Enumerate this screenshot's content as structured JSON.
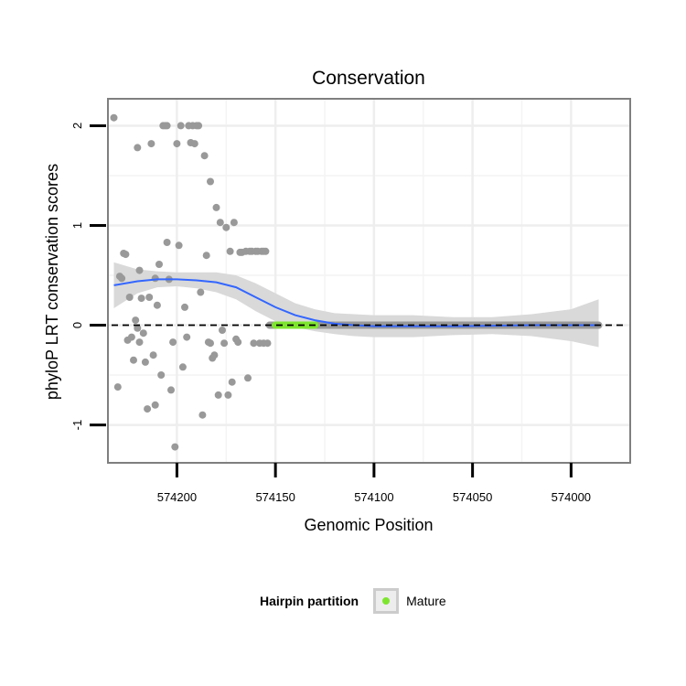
{
  "chart_data": {
    "type": "scatter",
    "title": "Conservation",
    "xlabel": "Genomic Position",
    "ylabel": "phyloP LRT conservation scores",
    "x_reversed": true,
    "xlim": [
      574235,
      573970
    ],
    "ylim": [
      -1.38,
      2.27
    ],
    "x_ticks": [
      574200,
      574150,
      574100,
      574050,
      574000
    ],
    "x_tick_labels": [
      "574200",
      "574150",
      "574100",
      "574050",
      "574000"
    ],
    "y_ticks": [
      -1,
      0,
      1,
      2
    ],
    "y_tick_labels": [
      "-1",
      "0",
      "1",
      "2"
    ],
    "reference_line_y": 0,
    "reference_line_style": "dashed",
    "point_color": "#999999",
    "points": [
      [
        574232,
        2.08
      ],
      [
        574230,
        -0.62
      ],
      [
        574229,
        0.49
      ],
      [
        574228,
        0.47
      ],
      [
        574227,
        0.72
      ],
      [
        574226,
        0.71
      ],
      [
        574225,
        -0.15
      ],
      [
        574224,
        0.28
      ],
      [
        574223,
        -0.12
      ],
      [
        574222,
        -0.35
      ],
      [
        574221,
        0.05
      ],
      [
        574220,
        1.78
      ],
      [
        574220,
        -0.03
      ],
      [
        574219,
        0.55
      ],
      [
        574219,
        -0.17
      ],
      [
        574218,
        0.27
      ],
      [
        574217,
        -0.08
      ],
      [
        574216,
        -0.37
      ],
      [
        574215,
        -0.84
      ],
      [
        574214,
        0.28
      ],
      [
        574213,
        1.82
      ],
      [
        574212,
        -0.3
      ],
      [
        574211,
        0.47
      ],
      [
        574211,
        -0.8
      ],
      [
        574210,
        0.2
      ],
      [
        574209,
        0.61
      ],
      [
        574208,
        -0.5
      ],
      [
        574207,
        2.0
      ],
      [
        574206,
        2.0
      ],
      [
        574205,
        0.83
      ],
      [
        574205,
        2.0
      ],
      [
        574204,
        0.46
      ],
      [
        574203,
        -0.65
      ],
      [
        574202,
        -0.17
      ],
      [
        574201,
        -1.22
      ],
      [
        574200,
        1.82
      ],
      [
        574199,
        0.8
      ],
      [
        574198,
        2.0
      ],
      [
        574197,
        -0.42
      ],
      [
        574196,
        0.18
      ],
      [
        574195,
        -0.12
      ],
      [
        574194,
        2.0
      ],
      [
        574193,
        1.83
      ],
      [
        574192,
        2.0
      ],
      [
        574191,
        1.82
      ],
      [
        574190,
        2.0
      ],
      [
        574189,
        2.0
      ],
      [
        574188,
        0.33
      ],
      [
        574187,
        -0.9
      ],
      [
        574186,
        1.7
      ],
      [
        574185,
        0.7
      ],
      [
        574184,
        -0.17
      ],
      [
        574183,
        1.44
      ],
      [
        574183,
        -0.18
      ],
      [
        574182,
        -0.33
      ],
      [
        574181,
        -0.3
      ],
      [
        574180,
        1.18
      ],
      [
        574179,
        -0.7
      ],
      [
        574178,
        1.03
      ],
      [
        574177,
        -0.05
      ],
      [
        574176,
        -0.18
      ],
      [
        574175,
        0.98
      ],
      [
        574174,
        -0.7
      ],
      [
        574173,
        0.74
      ],
      [
        574172,
        -0.57
      ],
      [
        574171,
        1.03
      ],
      [
        574170,
        -0.14
      ],
      [
        574169,
        -0.17
      ],
      [
        574168,
        0.73
      ],
      [
        574167,
        0.73
      ],
      [
        574165,
        0.74
      ],
      [
        574164,
        -0.53
      ],
      [
        574163,
        0.74
      ],
      [
        574162,
        0.74
      ],
      [
        574161,
        -0.18
      ],
      [
        574160,
        0.74
      ],
      [
        574159,
        0.74
      ],
      [
        574158,
        -0.18
      ],
      [
        574157,
        0.74
      ],
      [
        574156,
        0.74
      ],
      [
        574156,
        -0.18
      ],
      [
        574155,
        0.74
      ],
      [
        574154,
        -0.18
      ]
    ],
    "zero_points_x_range": [
      574153,
      573986
    ],
    "mature_segment": {
      "name": "Mature",
      "color": "#7ee52f",
      "x_range": [
        574150,
        574130
      ],
      "y": 0
    },
    "smooth_line": {
      "color": "#3366ff",
      "x": [
        574232,
        574220,
        574210,
        574200,
        574190,
        574180,
        574170,
        574160,
        574150,
        574140,
        574130,
        574120,
        574110,
        574100,
        574080,
        574060,
        574040,
        574020,
        574000,
        573986
      ],
      "y": [
        0.4,
        0.44,
        0.46,
        0.46,
        0.45,
        0.43,
        0.38,
        0.28,
        0.18,
        0.1,
        0.05,
        0.015,
        0.0,
        -0.01,
        -0.01,
        -0.01,
        -0.005,
        0.0,
        0.0,
        0.0
      ],
      "ci_lower": [
        0.17,
        0.32,
        0.38,
        0.39,
        0.37,
        0.33,
        0.26,
        0.14,
        0.04,
        -0.02,
        -0.06,
        -0.09,
        -0.11,
        -0.12,
        -0.12,
        -0.1,
        -0.09,
        -0.11,
        -0.16,
        -0.22
      ],
      "ci_upper": [
        0.63,
        0.56,
        0.54,
        0.53,
        0.53,
        0.53,
        0.5,
        0.42,
        0.32,
        0.22,
        0.16,
        0.12,
        0.11,
        0.1,
        0.1,
        0.08,
        0.08,
        0.11,
        0.16,
        0.26
      ],
      "ci_color": "#d9d9d9"
    },
    "legend": {
      "title": "Hairpin partition",
      "items": [
        {
          "label": "Mature",
          "color": "#7ee52f"
        }
      ],
      "position": "bottom"
    }
  }
}
